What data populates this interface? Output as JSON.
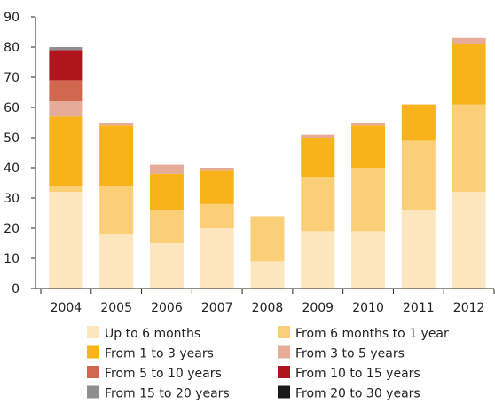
{
  "chart_data": {
    "type": "bar",
    "stacked": true,
    "categories": [
      "2004",
      "2005",
      "2006",
      "2007",
      "2008",
      "2009",
      "2010",
      "2011",
      "2012"
    ],
    "ylim": [
      0,
      90
    ],
    "yticks": [
      0,
      10,
      20,
      30,
      40,
      50,
      60,
      70,
      80,
      90
    ],
    "grid": false,
    "legend_position": "bottom",
    "series": [
      {
        "name": "Up to 6 months",
        "color": "#fde6bd",
        "values": [
          32,
          18,
          15,
          20,
          9,
          19,
          19,
          26,
          32
        ]
      },
      {
        "name": "From 6 months to 1 year",
        "color": "#fbcf78",
        "values": [
          2,
          16,
          11,
          8,
          15,
          18,
          21,
          23,
          29
        ]
      },
      {
        "name": "From 1 to 3 years",
        "color": "#f8b21a",
        "values": [
          23,
          20,
          12,
          11,
          0,
          13,
          14,
          12,
          20
        ]
      },
      {
        "name": "From 3 to 5 years",
        "color": "#e6ac98",
        "values": [
          5,
          1,
          3,
          1,
          0,
          1,
          1,
          0,
          2
        ]
      },
      {
        "name": "From 5 to 10 years",
        "color": "#d2674f",
        "values": [
          7,
          0,
          0,
          0,
          0,
          0,
          0,
          0,
          0
        ]
      },
      {
        "name": "From 10 to 15 years",
        "color": "#b0151e",
        "values": [
          10,
          0,
          0,
          0,
          0,
          0,
          0,
          0,
          0
        ]
      },
      {
        "name": "From 15 to 20 years",
        "color": "#8e8e8e",
        "values": [
          1,
          0,
          0,
          0,
          0,
          0,
          0,
          0,
          0
        ]
      },
      {
        "name": "From 20 to 30 years",
        "color": "#1a1a1a",
        "values": [
          0,
          0,
          0,
          0,
          0,
          0,
          0,
          0,
          0
        ]
      }
    ]
  }
}
